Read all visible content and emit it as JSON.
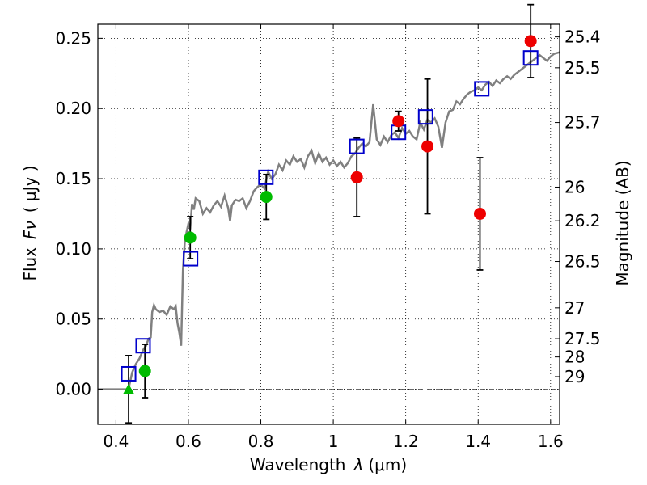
{
  "chart_data": {
    "type": "scatter",
    "xlabel_prefix": "Wavelength",
    "xlabel_symbol": "λ",
    "xlabel_unit": "(μm)",
    "ylabel_prefix": "Flux",
    "ylabel_symbol": "Fν",
    "ylabel_unit": "( μJy )",
    "y2label": "Magnitude (AB)",
    "xlim": [
      0.35,
      1.625
    ],
    "ylim": [
      -0.025,
      0.26
    ],
    "x_ticks": [
      0.4,
      0.6,
      0.8,
      1.0,
      1.2,
      1.4,
      1.6
    ],
    "x_tick_labels": [
      "0.4",
      "0.6",
      "0.8",
      "1",
      "1.2",
      "1.4",
      "1.6"
    ],
    "y_ticks": [
      0.0,
      0.05,
      0.1,
      0.15,
      0.2,
      0.25
    ],
    "y_tick_labels": [
      "0.00",
      "0.05",
      "0.10",
      "0.15",
      "0.20",
      "0.25"
    ],
    "mag_ticks": [
      {
        "flux": 0.251,
        "label": "25.4"
      },
      {
        "flux": 0.229,
        "label": "25.5"
      },
      {
        "flux": 0.19,
        "label": "25.7"
      },
      {
        "flux": 0.144,
        "label": "26"
      },
      {
        "flux": 0.12,
        "label": "26.2"
      },
      {
        "flux": 0.091,
        "label": "26.5"
      },
      {
        "flux": 0.058,
        "label": "27"
      },
      {
        "flux": 0.036,
        "label": "27.5"
      },
      {
        "flux": 0.023,
        "label": "28"
      },
      {
        "flux": 0.009,
        "label": "29"
      }
    ],
    "grid": true,
    "colors": {
      "sed": "#808080",
      "model_squares": "#0000cc",
      "green": "#00bb00",
      "red": "#ee0000",
      "errorbar": "#000000"
    },
    "sed_model": [
      [
        0.35,
        0.0
      ],
      [
        0.43,
        0.0
      ],
      [
        0.437,
        0.003
      ],
      [
        0.445,
        0.012
      ],
      [
        0.455,
        0.018
      ],
      [
        0.465,
        0.022
      ],
      [
        0.475,
        0.028
      ],
      [
        0.483,
        0.031
      ],
      [
        0.49,
        0.036
      ],
      [
        0.496,
        0.037
      ],
      [
        0.5,
        0.055
      ],
      [
        0.505,
        0.06
      ],
      [
        0.51,
        0.057
      ],
      [
        0.52,
        0.055
      ],
      [
        0.53,
        0.056
      ],
      [
        0.54,
        0.053
      ],
      [
        0.55,
        0.059
      ],
      [
        0.56,
        0.057
      ],
      [
        0.565,
        0.059
      ],
      [
        0.57,
        0.047
      ],
      [
        0.575,
        0.04
      ],
      [
        0.58,
        0.031
      ],
      [
        0.585,
        0.085
      ],
      [
        0.59,
        0.105
      ],
      [
        0.595,
        0.112
      ],
      [
        0.6,
        0.118
      ],
      [
        0.605,
        0.114
      ],
      [
        0.61,
        0.132
      ],
      [
        0.615,
        0.128
      ],
      [
        0.62,
        0.136
      ],
      [
        0.63,
        0.134
      ],
      [
        0.64,
        0.125
      ],
      [
        0.65,
        0.129
      ],
      [
        0.66,
        0.126
      ],
      [
        0.67,
        0.131
      ],
      [
        0.68,
        0.134
      ],
      [
        0.69,
        0.13
      ],
      [
        0.7,
        0.138
      ],
      [
        0.71,
        0.129
      ],
      [
        0.715,
        0.12
      ],
      [
        0.72,
        0.131
      ],
      [
        0.73,
        0.135
      ],
      [
        0.74,
        0.134
      ],
      [
        0.75,
        0.136
      ],
      [
        0.76,
        0.129
      ],
      [
        0.77,
        0.134
      ],
      [
        0.78,
        0.141
      ],
      [
        0.79,
        0.144
      ],
      [
        0.8,
        0.146
      ],
      [
        0.81,
        0.143
      ],
      [
        0.82,
        0.155
      ],
      [
        0.83,
        0.15
      ],
      [
        0.84,
        0.153
      ],
      [
        0.85,
        0.16
      ],
      [
        0.86,
        0.156
      ],
      [
        0.87,
        0.163
      ],
      [
        0.88,
        0.16
      ],
      [
        0.89,
        0.166
      ],
      [
        0.9,
        0.162
      ],
      [
        0.91,
        0.164
      ],
      [
        0.92,
        0.158
      ],
      [
        0.93,
        0.166
      ],
      [
        0.94,
        0.17
      ],
      [
        0.95,
        0.161
      ],
      [
        0.96,
        0.168
      ],
      [
        0.97,
        0.162
      ],
      [
        0.98,
        0.165
      ],
      [
        0.99,
        0.16
      ],
      [
        1.0,
        0.163
      ],
      [
        1.01,
        0.159
      ],
      [
        1.02,
        0.162
      ],
      [
        1.03,
        0.158
      ],
      [
        1.04,
        0.161
      ],
      [
        1.05,
        0.166
      ],
      [
        1.06,
        0.168
      ],
      [
        1.07,
        0.172
      ],
      [
        1.08,
        0.175
      ],
      [
        1.09,
        0.173
      ],
      [
        1.1,
        0.176
      ],
      [
        1.11,
        0.203
      ],
      [
        1.12,
        0.178
      ],
      [
        1.13,
        0.174
      ],
      [
        1.14,
        0.18
      ],
      [
        1.15,
        0.176
      ],
      [
        1.16,
        0.181
      ],
      [
        1.17,
        0.183
      ],
      [
        1.18,
        0.179
      ],
      [
        1.19,
        0.186
      ],
      [
        1.2,
        0.182
      ],
      [
        1.21,
        0.184
      ],
      [
        1.22,
        0.18
      ],
      [
        1.23,
        0.178
      ],
      [
        1.24,
        0.19
      ],
      [
        1.25,
        0.185
      ],
      [
        1.26,
        0.192
      ],
      [
        1.27,
        0.19
      ],
      [
        1.28,
        0.193
      ],
      [
        1.29,
        0.187
      ],
      [
        1.3,
        0.172
      ],
      [
        1.31,
        0.19
      ],
      [
        1.32,
        0.198
      ],
      [
        1.33,
        0.199
      ],
      [
        1.34,
        0.205
      ],
      [
        1.35,
        0.203
      ],
      [
        1.36,
        0.207
      ],
      [
        1.37,
        0.21
      ],
      [
        1.38,
        0.212
      ],
      [
        1.39,
        0.213
      ],
      [
        1.4,
        0.215
      ],
      [
        1.41,
        0.213
      ],
      [
        1.42,
        0.217
      ],
      [
        1.43,
        0.219
      ],
      [
        1.44,
        0.216
      ],
      [
        1.45,
        0.22
      ],
      [
        1.46,
        0.218
      ],
      [
        1.47,
        0.221
      ],
      [
        1.48,
        0.223
      ],
      [
        1.49,
        0.221
      ],
      [
        1.5,
        0.224
      ],
      [
        1.51,
        0.226
      ],
      [
        1.52,
        0.228
      ],
      [
        1.53,
        0.23
      ],
      [
        1.54,
        0.232
      ],
      [
        1.55,
        0.234
      ],
      [
        1.56,
        0.236
      ],
      [
        1.57,
        0.238
      ],
      [
        1.58,
        0.236
      ],
      [
        1.59,
        0.234
      ],
      [
        1.6,
        0.237
      ],
      [
        1.61,
        0.239
      ],
      [
        1.625,
        0.24
      ]
    ],
    "model_photometry": [
      {
        "x": 0.435,
        "y": 0.011
      },
      {
        "x": 0.475,
        "y": 0.031
      },
      {
        "x": 0.606,
        "y": 0.093
      },
      {
        "x": 0.814,
        "y": 0.151
      },
      {
        "x": 1.065,
        "y": 0.173
      },
      {
        "x": 1.18,
        "y": 0.183
      },
      {
        "x": 1.255,
        "y": 0.194
      },
      {
        "x": 1.41,
        "y": 0.214
      },
      {
        "x": 1.545,
        "y": 0.236
      }
    ],
    "upper_limit": {
      "x": 0.435,
      "y": 0.0,
      "err": 0.024
    },
    "green_points": [
      {
        "x": 0.48,
        "y": 0.013,
        "err": 0.019
      },
      {
        "x": 0.605,
        "y": 0.108,
        "err": 0.015
      },
      {
        "x": 0.815,
        "y": 0.137,
        "err": 0.016
      }
    ],
    "red_points": [
      {
        "x": 1.065,
        "y": 0.151,
        "err": 0.028
      },
      {
        "x": 1.18,
        "y": 0.191,
        "err": 0.007
      },
      {
        "x": 1.26,
        "y": 0.173,
        "err": 0.048
      },
      {
        "x": 1.405,
        "y": 0.125,
        "err": 0.04
      },
      {
        "x": 1.545,
        "y": 0.248,
        "err": 0.026
      }
    ]
  }
}
